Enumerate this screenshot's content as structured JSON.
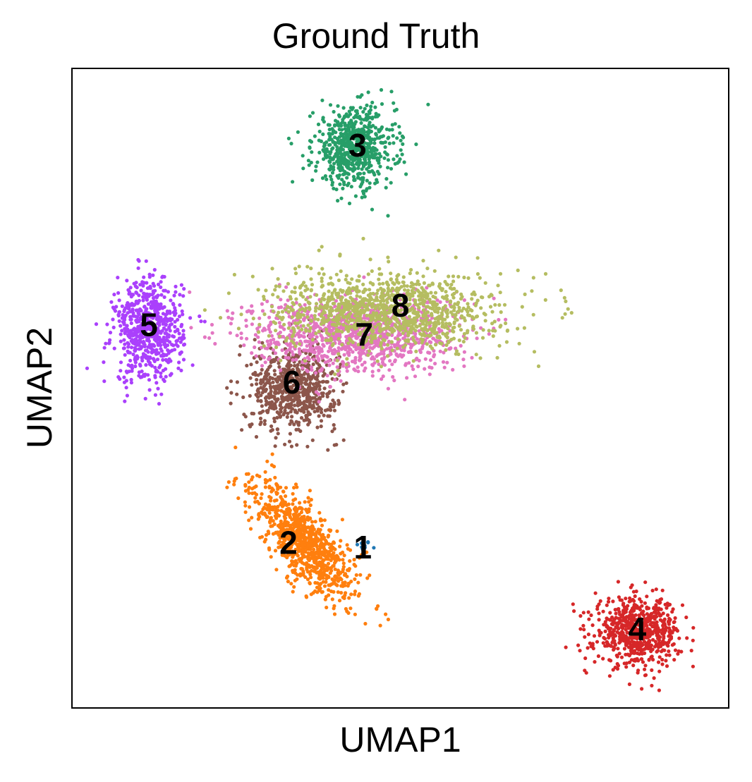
{
  "chart_data": {
    "type": "scatter",
    "title": "Ground Truth",
    "xlabel": "UMAP1",
    "ylabel": "UMAP2",
    "xlim": [
      0,
      100
    ],
    "ylim": [
      0,
      100
    ],
    "ticks_shown": false,
    "grid": false,
    "series": [
      {
        "name": "1",
        "color": "#1f77b4",
        "cx": 44.3,
        "cy": 25.4,
        "rx": 1.2,
        "ry": 0.8,
        "n": 12
      },
      {
        "name": "2",
        "color": "#ff7f0e",
        "cx": 35.5,
        "cy": 26.0,
        "rx": 6.2,
        "ry": 9.0,
        "n": 900
      },
      {
        "name": "3",
        "color": "#279e68",
        "cx": 43.0,
        "cy": 87.5,
        "rx": 6.2,
        "ry": 6.2,
        "n": 650
      },
      {
        "name": "4",
        "color": "#d62728",
        "cx": 86.0,
        "cy": 12.0,
        "rx": 6.5,
        "ry": 5.2,
        "n": 650
      },
      {
        "name": "5",
        "color": "#aa40fc",
        "cx": 11.8,
        "cy": 59.0,
        "rx": 5.2,
        "ry": 8.0,
        "n": 650
      },
      {
        "name": "6",
        "color": "#8c564b",
        "cx": 33.8,
        "cy": 50.0,
        "rx": 6.5,
        "ry": 6.5,
        "n": 650
      },
      {
        "name": "7",
        "color": "#e377c2",
        "cx": 43.0,
        "cy": 58.5,
        "rx": 15.5,
        "ry": 6.0,
        "n": 1100
      },
      {
        "name": "8",
        "color": "#b5bd61",
        "cx": 48.0,
        "cy": 62.0,
        "rx": 17.0,
        "ry": 6.0,
        "n": 1100
      }
    ],
    "cluster_labels": [
      {
        "text": "1",
        "x": 44.3,
        "y": 24.8
      },
      {
        "text": "2",
        "x": 33.0,
        "y": 25.5
      },
      {
        "text": "3",
        "x": 43.5,
        "y": 87.5
      },
      {
        "text": "4",
        "x": 86.0,
        "y": 12.0
      },
      {
        "text": "5",
        "x": 11.8,
        "y": 59.5
      },
      {
        "text": "6",
        "x": 33.5,
        "y": 50.5
      },
      {
        "text": "7",
        "x": 44.5,
        "y": 58.0
      },
      {
        "text": "8",
        "x": 50.0,
        "y": 62.5
      }
    ]
  }
}
